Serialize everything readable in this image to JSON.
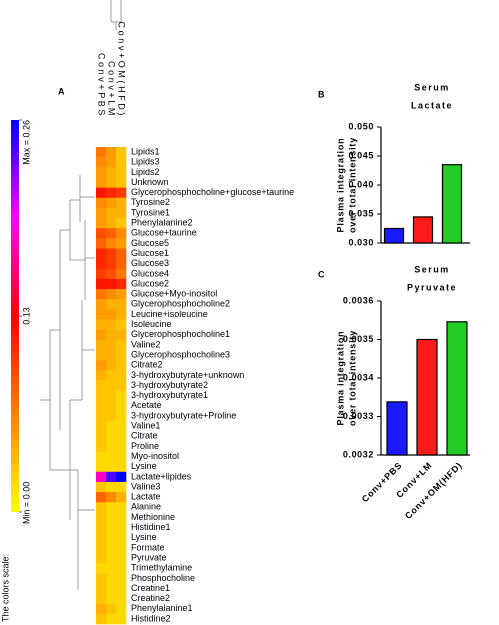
{
  "chart_data": [
    {
      "type": "heatmap",
      "panel": "A",
      "columns": [
        "Conv+PBS",
        "Conv+LM",
        "Conv+OM(HFD)"
      ],
      "rows": [
        "Lipids1",
        "Lipids3",
        "Lipids2",
        "Unknown",
        "Glycerophosphocholine+glucose+taurine",
        "Tyrosine2",
        "Tyrosine1",
        "Phenylalanine2",
        "Glucose+taurine",
        "Glucose5",
        "Glucose1",
        "Glucose3",
        "Glucose4",
        "Glucose2",
        "Glucose+Myo-inositol",
        "Glycerophosphocholine2",
        "Leucine+isoleucine",
        "Isoleucine",
        "Glycerophosphocholine1",
        "Valine2",
        "Glycerophosphocholine3",
        "Citrate2",
        "3-hydroxybutyrate+unknown",
        "3-hydroxybutyrate2",
        "3-hydroxybutyrate1",
        "Acetate",
        "3-hydroxybutyrate+Proline",
        "Valine1",
        "Citrate",
        "Proline",
        "Myo-inositol",
        "Lysine",
        "Lactate+lipides",
        "Valine3",
        "Lactate",
        "Alanine",
        "Methionine",
        "Histidine1",
        "Lysine",
        "Formate",
        "Pyruvate",
        "Trimethylamine",
        "Phosphocholine",
        "Creatine1",
        "Creatine2",
        "Phenylalanine1",
        "Histidine2"
      ],
      "values": [
        [
          0.07,
          0.05,
          0.03
        ],
        [
          0.06,
          0.05,
          0.03
        ],
        [
          0.05,
          0.04,
          0.03
        ],
        [
          0.05,
          0.04,
          0.03
        ],
        [
          0.12,
          0.11,
          0.1
        ],
        [
          0.06,
          0.05,
          0.04
        ],
        [
          0.05,
          0.04,
          0.04
        ],
        [
          0.05,
          0.04,
          0.03
        ],
        [
          0.09,
          0.08,
          0.06
        ],
        [
          0.08,
          0.06,
          0.05
        ],
        [
          0.11,
          0.1,
          0.08
        ],
        [
          0.11,
          0.1,
          0.08
        ],
        [
          0.1,
          0.09,
          0.07
        ],
        [
          0.12,
          0.12,
          0.11
        ],
        [
          0.07,
          0.06,
          0.05
        ],
        [
          0.05,
          0.04,
          0.04
        ],
        [
          0.05,
          0.05,
          0.04
        ],
        [
          0.04,
          0.04,
          0.03
        ],
        [
          0.05,
          0.04,
          0.04
        ],
        [
          0.04,
          0.04,
          0.03
        ],
        [
          0.04,
          0.04,
          0.03
        ],
        [
          0.05,
          0.04,
          0.03
        ],
        [
          0.04,
          0.03,
          0.03
        ],
        [
          0.03,
          0.03,
          0.03
        ],
        [
          0.03,
          0.03,
          0.02
        ],
        [
          0.03,
          0.03,
          0.02
        ],
        [
          0.03,
          0.03,
          0.02
        ],
        [
          0.03,
          0.02,
          0.02
        ],
        [
          0.03,
          0.02,
          0.02
        ],
        [
          0.03,
          0.02,
          0.02
        ],
        [
          0.02,
          0.02,
          0.02
        ],
        [
          0.02,
          0.02,
          0.02
        ],
        [
          0.18,
          0.24,
          0.26
        ],
        [
          0.03,
          0.02,
          0.02
        ],
        [
          0.08,
          0.06,
          0.04
        ],
        [
          0.03,
          0.02,
          0.02
        ],
        [
          0.03,
          0.02,
          0.02
        ],
        [
          0.03,
          0.02,
          0.02
        ],
        [
          0.03,
          0.02,
          0.02
        ],
        [
          0.03,
          0.02,
          0.02
        ],
        [
          0.03,
          0.02,
          0.02
        ],
        [
          0.02,
          0.02,
          0.02
        ],
        [
          0.03,
          0.02,
          0.02
        ],
        [
          0.03,
          0.02,
          0.02
        ],
        [
          0.03,
          0.02,
          0.02
        ],
        [
          0.04,
          0.03,
          0.02
        ],
        [
          0.03,
          0.02,
          0.02
        ]
      ],
      "colorscale": [
        "#ffff00",
        "#ff8000",
        "#ff0000",
        "#ff00ff",
        "#0000ff"
      ],
      "zlim": [
        0,
        0.26
      ],
      "zticks": [
        {
          "value": 0,
          "label": "Min = 0.00"
        },
        0.13,
        {
          "value": 0.26,
          "label": "Max = 0.26"
        }
      ],
      "colorbar_title": "The colors scale:"
    },
    {
      "type": "bar",
      "panel": "B",
      "title": [
        "Serum",
        "Lactate"
      ],
      "ylabel": [
        "Plasma integration",
        "over total intensity"
      ],
      "categories": [
        null,
        null,
        null
      ],
      "values": [
        0.0325,
        0.0345,
        0.0435
      ],
      "colors": [
        "#1a1aff",
        "#ff1a1a",
        "#22cc22"
      ],
      "ylim": [
        0.03,
        0.05
      ],
      "yticks": [
        {
          "value": 0.03,
          "label": "0.030"
        },
        0.035,
        {
          "value": 0.04,
          "label": "0.040"
        },
        0.045,
        {
          "value": 0.05,
          "label": "0.050"
        }
      ]
    },
    {
      "type": "bar",
      "panel": "C",
      "title": [
        "Serum",
        "Pyruvate"
      ],
      "ylabel": [
        "Plasma integration",
        "over total intensity"
      ],
      "categories": [
        "Conv+PBS",
        "Conv+LM",
        "Conv+OM(HFD)"
      ],
      "values": [
        0.003338,
        0.0035,
        0.003546
      ],
      "colors": [
        "#1a1aff",
        "#ff1a1a",
        "#22cc22"
      ],
      "ylim": [
        0.0032,
        0.0036
      ],
      "yticks": [
        0.0032,
        0.0033,
        0.0034,
        0.0035,
        0.0036
      ]
    }
  ]
}
